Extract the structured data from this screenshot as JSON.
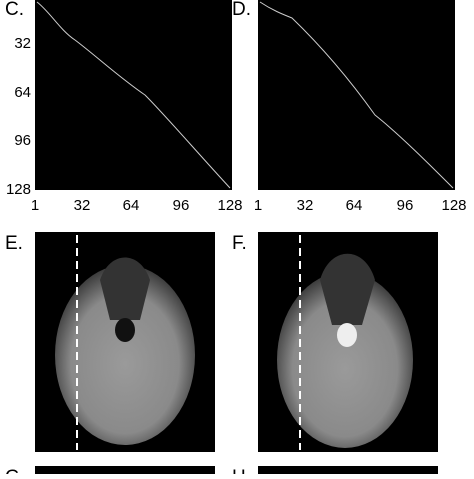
{
  "panels": [
    {
      "label": "C.",
      "yticks": [
        "32",
        "64",
        "96",
        "128"
      ],
      "xticks": [
        "1",
        "32",
        "64",
        "96",
        "128"
      ]
    },
    {
      "label": "D.",
      "xticks": [
        "1",
        "32",
        "64",
        "96",
        "128"
      ]
    },
    {
      "label": "E."
    },
    {
      "label": "F."
    },
    {
      "label": "G"
    },
    {
      "label": "H"
    }
  ]
}
